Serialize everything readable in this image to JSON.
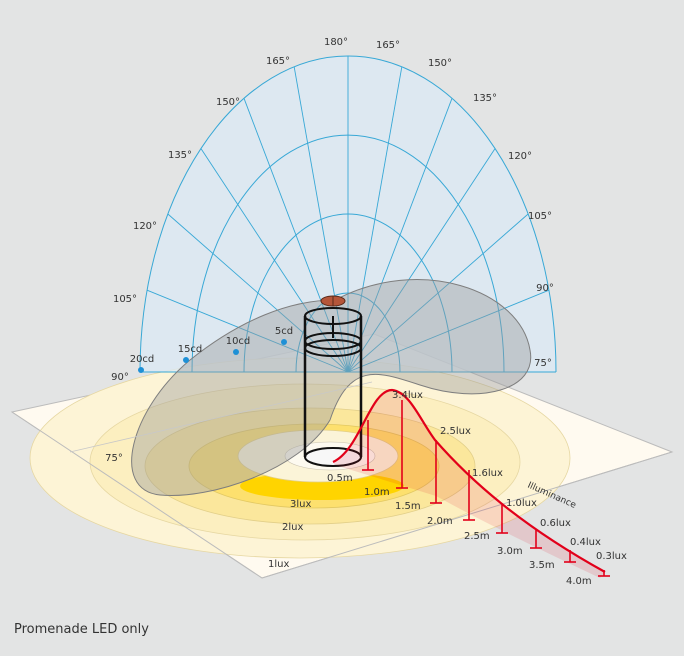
{
  "caption": "Promenade LED only",
  "angles_left": [
    "165°",
    "150°",
    "135°",
    "120°",
    "105°",
    "90°",
    "75°"
  ],
  "angles_top": "180°",
  "angles_right": [
    "165°",
    "150°",
    "135°",
    "120°",
    "105°",
    "90°",
    "75°"
  ],
  "candela_labels": [
    "5cd",
    "10cd",
    "15cd",
    "20cd"
  ],
  "illuminance_title": "Illuminance",
  "curve_peaks": [
    "3.4lux",
    "2.5lux",
    "1.6lux",
    "1.0lux",
    "0.6lux",
    "0.4lux",
    "0.3lux"
  ],
  "distances": [
    "0.5m",
    "1.0m",
    "1.5m",
    "2.0m",
    "2.5m",
    "3.0m",
    "3.5m",
    "4.0m"
  ],
  "floor_lux": [
    "3lux",
    "2lux",
    "1lux"
  ],
  "colors": {
    "background": "#e3e4e4",
    "polar_lines": "#38a8d6",
    "polar_fill": "#dbe9f6",
    "distribution": "#9b9b9b",
    "iso_yellow": "#ffd400",
    "curve_red": "#e2001a"
  }
}
